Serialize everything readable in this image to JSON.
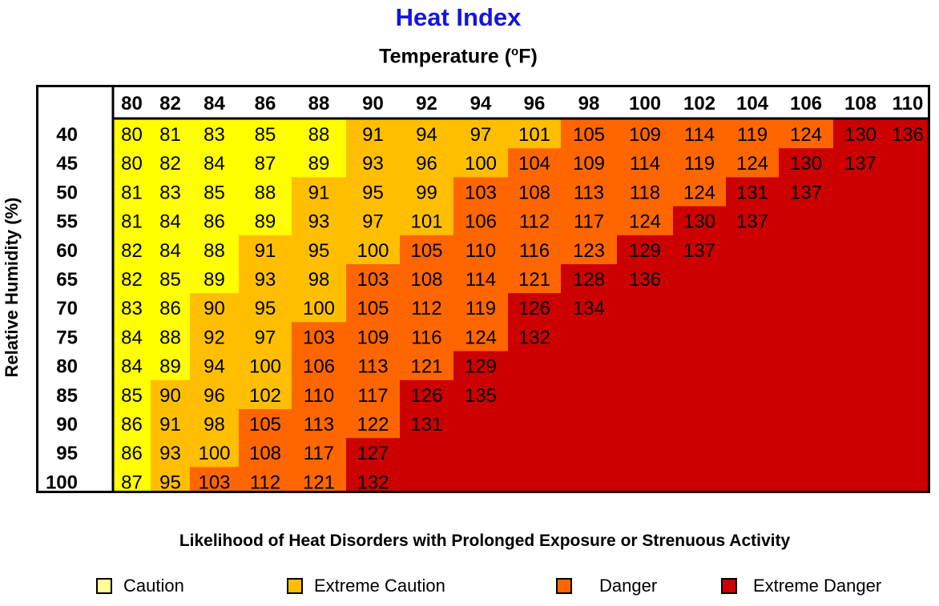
{
  "chart_data": {
    "type": "heatmap",
    "title": "Heat Index",
    "xlabel": "Temperature (",
    "xlabel_unit": "o",
    "xlabel_end": "F)",
    "ylabel": "Relative Humidity (%)",
    "x": [
      "80",
      "82",
      "84",
      "86",
      "88",
      "90",
      "92",
      "94",
      "96",
      "98",
      "100",
      "102",
      "104",
      "106",
      "108",
      "110"
    ],
    "y": [
      "40",
      "45",
      "50",
      "55",
      "60",
      "65",
      "70",
      "75",
      "80",
      "85",
      "90",
      "95",
      "100"
    ],
    "values": [
      [
        80,
        81,
        83,
        85,
        88,
        91,
        94,
        97,
        101,
        105,
        109,
        114,
        119,
        124,
        130,
        136
      ],
      [
        80,
        82,
        84,
        87,
        89,
        93,
        96,
        100,
        104,
        109,
        114,
        119,
        124,
        130,
        137,
        null
      ],
      [
        81,
        83,
        85,
        88,
        91,
        95,
        99,
        103,
        108,
        113,
        118,
        124,
        131,
        137,
        null,
        null
      ],
      [
        81,
        84,
        86,
        89,
        93,
        97,
        101,
        106,
        112,
        117,
        124,
        130,
        137,
        null,
        null,
        null
      ],
      [
        82,
        84,
        88,
        91,
        95,
        100,
        105,
        110,
        116,
        123,
        129,
        137,
        null,
        null,
        null,
        null
      ],
      [
        82,
        85,
        89,
        93,
        98,
        103,
        108,
        114,
        121,
        128,
        136,
        null,
        null,
        null,
        null,
        null
      ],
      [
        83,
        86,
        90,
        95,
        100,
        105,
        112,
        119,
        126,
        134,
        null,
        null,
        null,
        null,
        null,
        null
      ],
      [
        84,
        88,
        92,
        97,
        103,
        109,
        116,
        124,
        132,
        null,
        null,
        null,
        null,
        null,
        null,
        null
      ],
      [
        84,
        89,
        94,
        100,
        106,
        113,
        121,
        129,
        null,
        null,
        null,
        null,
        null,
        null,
        null,
        null
      ],
      [
        85,
        90,
        96,
        102,
        110,
        117,
        126,
        135,
        null,
        null,
        null,
        null,
        null,
        null,
        null,
        null
      ],
      [
        86,
        91,
        98,
        105,
        113,
        122,
        131,
        null,
        null,
        null,
        null,
        null,
        null,
        null,
        null,
        null
      ],
      [
        86,
        93,
        100,
        108,
        117,
        127,
        null,
        null,
        null,
        null,
        null,
        null,
        null,
        null,
        null,
        null
      ],
      [
        87,
        95,
        103,
        112,
        121,
        132,
        null,
        null,
        null,
        null,
        null,
        null,
        null,
        null,
        null,
        null
      ]
    ],
    "categories_legend": [
      {
        "label": "Caution",
        "color": "#ffff00"
      },
      {
        "label": "Extreme Caution",
        "color": "#ffbf00"
      },
      {
        "label": "Danger",
        "color": "#ff6600"
      },
      {
        "label": "Extreme Danger",
        "color": "#cc0000"
      }
    ],
    "legend_swatch_colors": [
      "#ffff99",
      "#ffbf00",
      "#ff6600",
      "#cc0000"
    ],
    "subtitle": "Likelihood of Heat Disorders with Prolonged Exposure or Strenuous Activity",
    "legend_position": "bottom"
  }
}
